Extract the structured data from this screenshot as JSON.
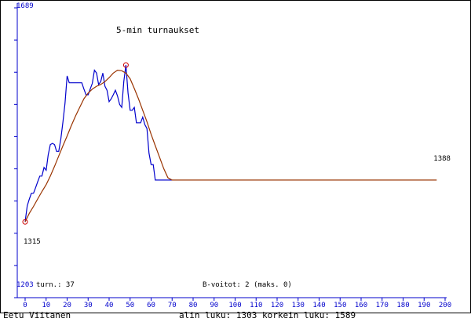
{
  "chart_data": {
    "type": "line",
    "title": "5-min turnaukset",
    "xlim": [
      0,
      200
    ],
    "ylim": [
      1203,
      1689
    ],
    "x_ticks": [
      0,
      10,
      20,
      30,
      40,
      50,
      60,
      70,
      80,
      90,
      100,
      110,
      120,
      130,
      140,
      150,
      160,
      170,
      180,
      190,
      200
    ],
    "y_axis_top_label": "1689",
    "y_axis_bottom_label": "1203",
    "grid": false,
    "series": [
      {
        "color": "#0000cc",
        "x": [
          0,
          1,
          2,
          3,
          4,
          5,
          6,
          7,
          8,
          9,
          10,
          11,
          12,
          13,
          14,
          15,
          16,
          17,
          18,
          19,
          20,
          21,
          22,
          23,
          24,
          25,
          26,
          27,
          28,
          29,
          30,
          31,
          32,
          33,
          34,
          35,
          36,
          37,
          38,
          39,
          40,
          41,
          42,
          43,
          44,
          45,
          46,
          47,
          48,
          49,
          50,
          51,
          52,
          53,
          54,
          55,
          56,
          57,
          58,
          59,
          60,
          61,
          62,
          63,
          64,
          65,
          66,
          67,
          68,
          69,
          70
        ],
        "y": [
          1315,
          1343,
          1355,
          1365,
          1365,
          1375,
          1385,
          1395,
          1395,
          1410,
          1405,
          1432,
          1450,
          1452,
          1450,
          1438,
          1438,
          1460,
          1490,
          1522,
          1570,
          1558,
          1558,
          1558,
          1558,
          1558,
          1558,
          1558,
          1547,
          1537,
          1537,
          1547,
          1557,
          1580,
          1575,
          1555,
          1560,
          1575,
          1552,
          1545,
          1525,
          1530,
          1537,
          1545,
          1535,
          1520,
          1515,
          1560,
          1589,
          1540,
          1510,
          1510,
          1515,
          1488,
          1488,
          1488,
          1498,
          1485,
          1478,
          1435,
          1415,
          1415,
          1388,
          1388,
          1388,
          1388,
          1388,
          1388,
          1388,
          1388,
          1388
        ]
      },
      {
        "color": "#993300",
        "x": [
          0,
          2,
          4,
          6,
          8,
          10,
          12,
          14,
          16,
          18,
          20,
          22,
          24,
          26,
          28,
          30,
          32,
          34,
          36,
          38,
          40,
          42,
          44,
          46,
          48,
          50,
          52,
          54,
          56,
          58,
          60,
          62,
          64,
          66,
          68,
          70,
          80,
          90,
          100,
          110,
          120,
          130,
          140,
          150,
          160,
          170,
          180,
          190,
          196
        ],
        "y": [
          1315,
          1330,
          1342,
          1355,
          1368,
          1380,
          1395,
          1412,
          1430,
          1448,
          1465,
          1483,
          1500,
          1515,
          1530,
          1540,
          1547,
          1552,
          1555,
          1560,
          1567,
          1575,
          1580,
          1579,
          1575,
          1565,
          1548,
          1530,
          1510,
          1490,
          1468,
          1448,
          1428,
          1408,
          1392,
          1388,
          1388,
          1388,
          1388,
          1388,
          1388,
          1388,
          1388,
          1388,
          1388,
          1388,
          1388,
          1388,
          1388
        ]
      }
    ],
    "markers": [
      {
        "x": 0,
        "y": 1315
      },
      {
        "x": 48,
        "y": 1589
      }
    ],
    "annotations": [
      {
        "text": "1315",
        "x": 0,
        "y": 1315
      },
      {
        "text": "1388",
        "x": 196,
        "y": 1388
      }
    ],
    "info_line": {
      "left": "turn.: 37",
      "center": "B-voitot: 2 (maks. 0)"
    }
  },
  "footer": {
    "name": "Eetu Viitanen",
    "summary": "alin luku: 1303  korkein luku: 1589"
  },
  "colors": {
    "axis": "#0000cc",
    "tick_text": "#0000cc",
    "frame": "#000000",
    "background": "#ffffff"
  }
}
